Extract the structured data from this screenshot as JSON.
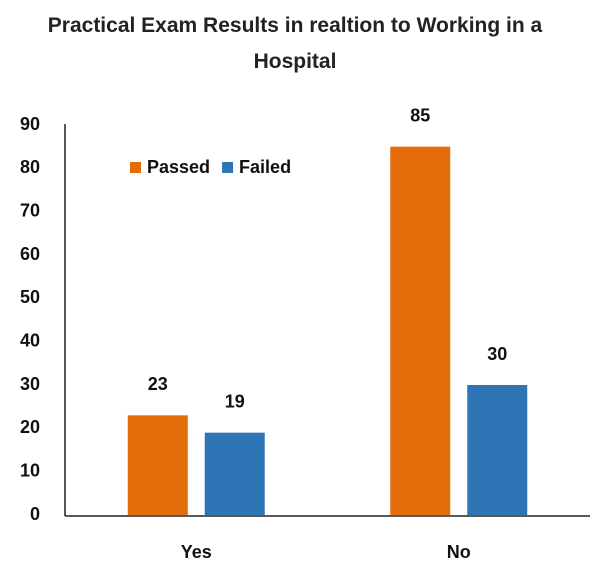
{
  "chart_data": {
    "type": "bar",
    "title": "Practical Exam Results in realtion to Working in a Hospital",
    "categories": [
      "Yes",
      "No"
    ],
    "series": [
      {
        "name": "Passed",
        "color": "#e46c0a",
        "values": [
          23,
          85
        ]
      },
      {
        "name": "Failed",
        "color": "#2e75b6",
        "values": [
          19,
          30
        ]
      }
    ],
    "ylim": [
      0,
      90
    ],
    "yticks": [
      0,
      10,
      20,
      30,
      40,
      50,
      60,
      70,
      80,
      90
    ],
    "grid": false,
    "legend": "top-left"
  }
}
